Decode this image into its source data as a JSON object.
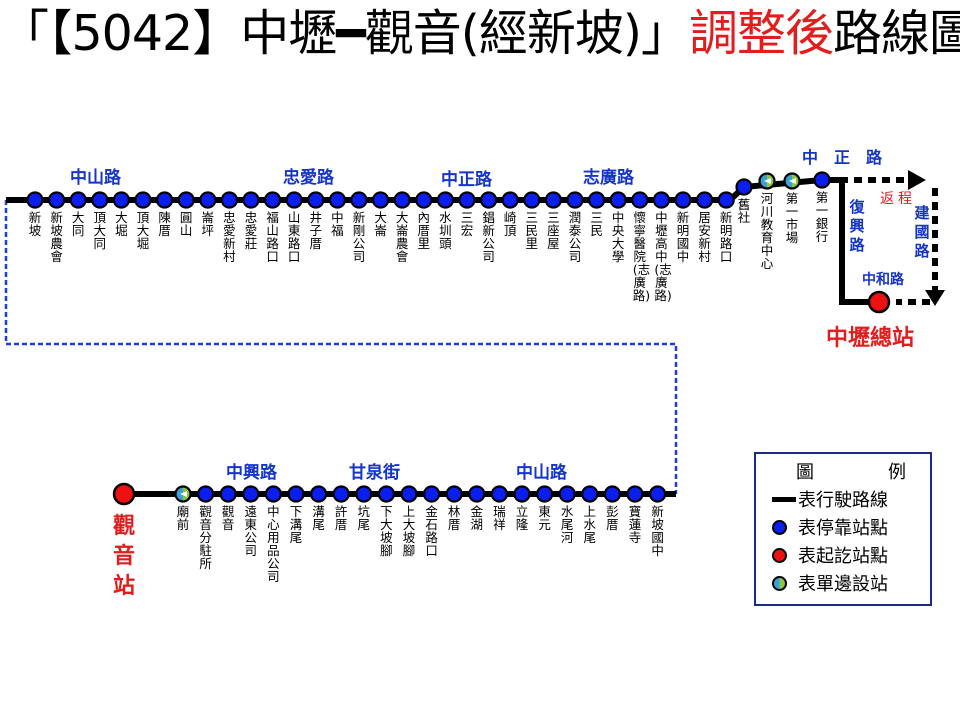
{
  "title": {
    "prefix": "「【5042】中壢",
    "dash": "━",
    "mid": "觀音(經新坡)」",
    "highlight": "調整後",
    "suffix": "路線圖"
  },
  "colors": {
    "route": "#000000",
    "stop": "#0a1ef0",
    "terminal": "#ee1111",
    "one_side_a": "#3aa0d8",
    "one_side_b": "#8cc63f",
    "road_text": "#1535c9",
    "highlight": "#e21d1d",
    "dashed_link": "#1a3fd8"
  },
  "top_row_stops": [
    {
      "name": "新坡",
      "type": "stop"
    },
    {
      "name": "新坡農會",
      "type": "stop"
    },
    {
      "name": "大同",
      "type": "stop"
    },
    {
      "name": "頂大同",
      "type": "stop"
    },
    {
      "name": "大堀",
      "type": "stop"
    },
    {
      "name": "頂大堀",
      "type": "stop"
    },
    {
      "name": "陳厝",
      "type": "stop"
    },
    {
      "name": "圓山",
      "type": "stop"
    },
    {
      "name": "崙坪",
      "type": "stop"
    },
    {
      "name": "忠愛新村",
      "type": "stop"
    },
    {
      "name": "忠愛莊",
      "type": "stop"
    },
    {
      "name": "福山路口",
      "type": "stop"
    },
    {
      "name": "山東路口",
      "type": "stop"
    },
    {
      "name": "井子厝",
      "type": "stop"
    },
    {
      "name": "中福",
      "type": "stop"
    },
    {
      "name": "新剛公司",
      "type": "stop"
    },
    {
      "name": "大崙",
      "type": "stop"
    },
    {
      "name": "大崙農會",
      "type": "stop"
    },
    {
      "name": "內厝里",
      "type": "stop"
    },
    {
      "name": "水圳頭",
      "type": "stop"
    },
    {
      "name": "三宏",
      "type": "stop"
    },
    {
      "name": "錩新公司",
      "type": "stop"
    },
    {
      "name": "崎頂",
      "type": "stop"
    },
    {
      "name": "三民里",
      "type": "stop"
    },
    {
      "name": "三座屋",
      "type": "stop"
    },
    {
      "name": "潤泰公司",
      "type": "stop"
    },
    {
      "name": "三民",
      "type": "stop"
    },
    {
      "name": "中央大學",
      "type": "stop"
    },
    {
      "name": "懷寧醫院(志廣路)",
      "type": "stop"
    },
    {
      "name": "中壢高中(志廣路)",
      "type": "stop"
    },
    {
      "name": "新明國中",
      "type": "stop"
    },
    {
      "name": "居安新村",
      "type": "stop"
    },
    {
      "name": "新明路口",
      "type": "stop"
    }
  ],
  "upper_right_stops": [
    {
      "name": "舊社",
      "type": "stop"
    },
    {
      "name": "河川教育中心",
      "type": "oneside"
    },
    {
      "name": "第一市場",
      "type": "oneside"
    },
    {
      "name": "第一銀行",
      "type": "stop"
    }
  ],
  "bottom_row_stops": [
    {
      "name": "廟前",
      "type": "oneside"
    },
    {
      "name": "觀音分駐所",
      "type": "stop"
    },
    {
      "name": "觀音",
      "type": "stop"
    },
    {
      "name": "遠東公司",
      "type": "stop"
    },
    {
      "name": "中心用品公司",
      "type": "stop"
    },
    {
      "name": "下溝尾",
      "type": "stop"
    },
    {
      "name": "溝尾",
      "type": "stop"
    },
    {
      "name": "許厝",
      "type": "stop"
    },
    {
      "name": "坑尾",
      "type": "stop"
    },
    {
      "name": "下大坡腳",
      "type": "stop"
    },
    {
      "name": "上大坡腳",
      "type": "stop"
    },
    {
      "name": "金石路口",
      "type": "stop"
    },
    {
      "name": "林厝",
      "type": "stop"
    },
    {
      "name": "金湖",
      "type": "stop"
    },
    {
      "name": "瑞祥",
      "type": "stop"
    },
    {
      "name": "立隆",
      "type": "stop"
    },
    {
      "name": "東元",
      "type": "stop"
    },
    {
      "name": "水尾河",
      "type": "stop"
    },
    {
      "name": "上水尾",
      "type": "stop"
    },
    {
      "name": "彭厝",
      "type": "stop"
    },
    {
      "name": "寶蓮寺",
      "type": "stop"
    },
    {
      "name": "新坡國中",
      "type": "stop"
    }
  ],
  "roads": {
    "top_zhongshan": "中山路",
    "top_zhongai": "忠愛路",
    "top_zhongzheng": "中正路",
    "top_zhiguang": "志廣路",
    "upper_zhongzheng": "中　正　路",
    "fuxing": "復興路",
    "jianguo": "建國路",
    "zhonghe": "中和路",
    "bottom_zhongxing": "中興路",
    "bottom_ganquan": "甘泉街",
    "bottom_zhongshan": "中山路"
  },
  "return_label": "返程",
  "terminals": {
    "zhongli": "中壢總站",
    "guanyin": "觀音站"
  },
  "legend": {
    "title_left": "圖",
    "title_right": "例",
    "route_line": "表行駛路線",
    "stop": "表停靠站點",
    "terminal": "表起訖站點",
    "one_side": "表單邊設站"
  }
}
